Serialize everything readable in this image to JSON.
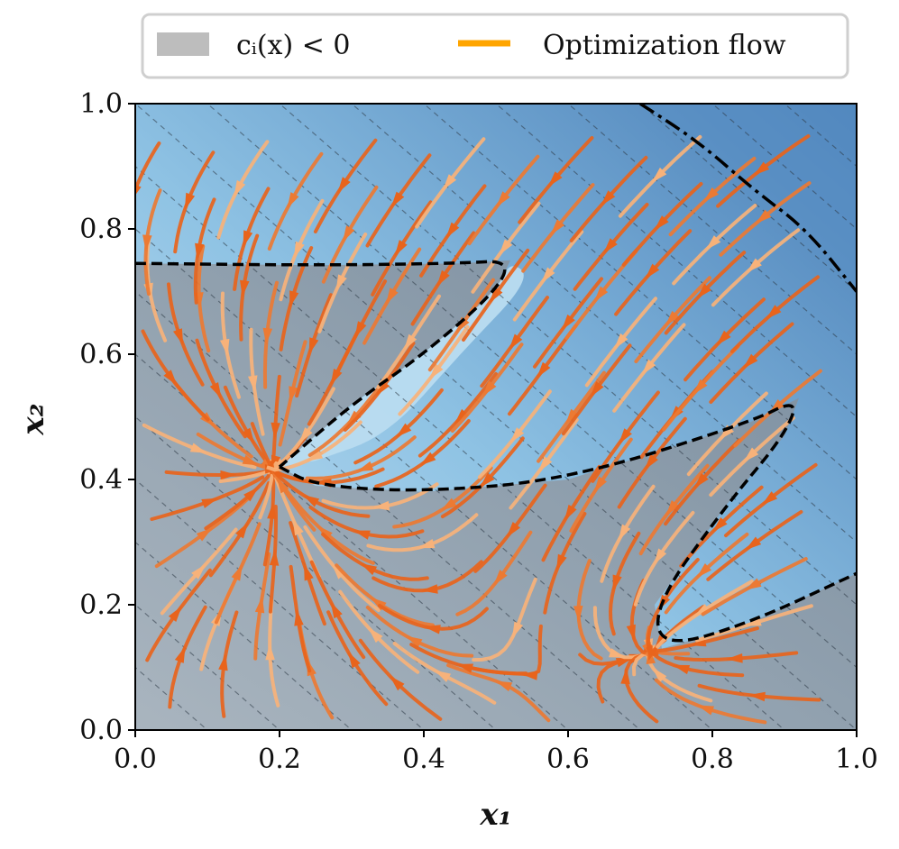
{
  "chart_data": {
    "type": "streamplot",
    "xlabel": "x₁",
    "ylabel": "x₂",
    "xlim": [
      0.0,
      1.0
    ],
    "ylim": [
      0.0,
      1.0
    ],
    "xticks": [
      "0.0",
      "0.2",
      "0.4",
      "0.6",
      "0.8",
      "1.0"
    ],
    "yticks": [
      "0.0",
      "0.2",
      "0.4",
      "0.6",
      "0.8",
      "1.0"
    ],
    "xtick_values": [
      0.0,
      0.2,
      0.4,
      0.6,
      0.8,
      1.0
    ],
    "ytick_values": [
      0.0,
      0.2,
      0.4,
      0.6,
      0.8,
      1.0
    ],
    "legend": {
      "placement": "top-center",
      "entries": [
        {
          "label": "cᵢ(x) < 0",
          "kind": "region",
          "color": "#bdbdbd"
        },
        {
          "label": "Optimization flow",
          "kind": "line",
          "color": "#ffa500"
        }
      ]
    },
    "colors": {
      "flow_dark": "#e8641c",
      "flow_light": "#f7b27a",
      "feasible_light": "#b9dcf0",
      "feasible_dark": "#4f86c0",
      "infeasible_region": "#8a9aaa",
      "boundary": "#000000"
    },
    "regions": [
      {
        "name": "infeasible-wedge-left",
        "boundary": [
          [
            0.0,
            0.745
          ],
          [
            0.25,
            0.742
          ],
          [
            0.45,
            0.745
          ],
          [
            0.52,
            0.75
          ],
          [
            0.5,
            0.7
          ],
          [
            0.4,
            0.6
          ],
          [
            0.3,
            0.52
          ],
          [
            0.2,
            0.42
          ],
          [
            0.25,
            0.39
          ],
          [
            0.4,
            0.38
          ],
          [
            0.6,
            0.4
          ],
          [
            0.85,
            0.49
          ],
          [
            0.92,
            0.53
          ],
          [
            0.9,
            0.47
          ],
          [
            0.82,
            0.36
          ],
          [
            0.72,
            0.2
          ],
          [
            0.73,
            0.13
          ],
          [
            0.85,
            0.17
          ],
          [
            1.0,
            0.25
          ],
          [
            1.0,
            0.0
          ],
          [
            0.0,
            0.0
          ]
        ]
      }
    ],
    "feasible_lens": [
      [
        0.2,
        0.42
      ],
      [
        0.3,
        0.52
      ],
      [
        0.4,
        0.6
      ],
      [
        0.5,
        0.7
      ],
      [
        0.52,
        0.75
      ],
      [
        0.55,
        0.72
      ],
      [
        0.45,
        0.6
      ],
      [
        0.35,
        0.47
      ],
      [
        0.25,
        0.43
      ]
    ],
    "right_band_boundary": [
      [
        0.7,
        1.0
      ],
      [
        0.78,
        0.94
      ],
      [
        0.86,
        0.86
      ],
      [
        0.93,
        0.8
      ],
      [
        1.0,
        0.7
      ]
    ],
    "stagnation_points": [
      [
        0.19,
        0.42
      ],
      [
        0.73,
        0.13
      ]
    ]
  }
}
